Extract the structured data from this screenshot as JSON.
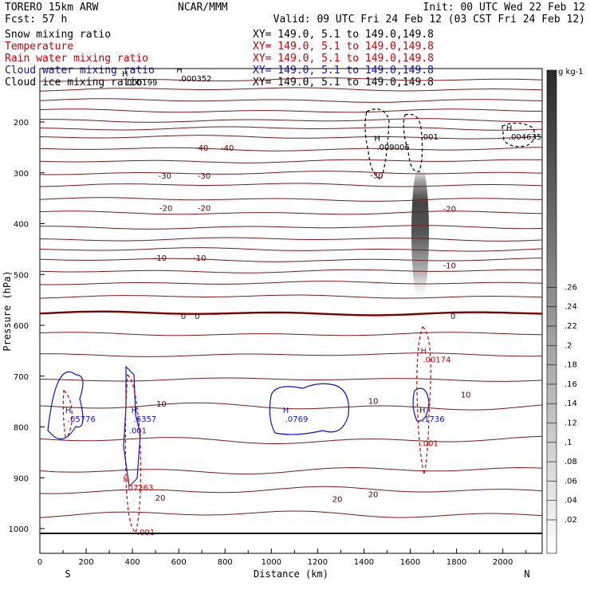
{
  "header": {
    "model": "TORERO  15km ARW",
    "center": "NCAR/MMM",
    "init": "Init: 00 UTC Wed 22 Feb 12",
    "fcst": "Fcst:   57 h",
    "valid": "Valid: 09 UTC Fri 24 Feb 12 (03 CST Fri 24 Feb 12)"
  },
  "legend": {
    "entries": [
      {
        "name": "Snow mixing ratio",
        "color": "#000000"
      },
      {
        "name": "Temperature",
        "color": "#cc0000"
      },
      {
        "name": "Rain water mixing ratio",
        "color": "#cc0000"
      },
      {
        "name": "Cloud water mixing ratio",
        "color": "#1010cc"
      },
      {
        "name": "Cloud ice mixing ratio",
        "color": "#000000"
      }
    ],
    "xy": "XY= 149.0,  5.1 to 149.0,149.8"
  },
  "colorbar": {
    "unit": "g kg-1",
    "ticks": [
      ".02",
      ".04",
      ".06",
      ".08",
      ".1",
      ".12",
      ".14",
      ".16",
      ".18",
      ".2",
      ".22",
      ".24",
      ".26"
    ]
  },
  "chart_data": {
    "type": "line",
    "title": "",
    "xlabel": "Distance (km)",
    "ylabel": "Pressure (hPa)",
    "xlim": [
      0,
      2170
    ],
    "ylim": [
      1050,
      100
    ],
    "xticks": [
      0,
      200,
      400,
      600,
      800,
      1000,
      1200,
      1400,
      1600,
      1800,
      2000
    ],
    "yticks": [
      200,
      300,
      400,
      500,
      600,
      700,
      800,
      900,
      1000
    ],
    "x_endpoints": {
      "left": "S",
      "right": "N"
    },
    "temperature_labels": [
      {
        "label": "-40",
        "x": 700,
        "p": 252
      },
      {
        "label": "-40",
        "x": 810,
        "p": 252
      },
      {
        "label": "-30",
        "x": 540,
        "p": 307
      },
      {
        "label": "-30",
        "x": 710,
        "p": 307
      },
      {
        "label": "-30",
        "x": 1455,
        "p": 306
      },
      {
        "label": "-20",
        "x": 545,
        "p": 370
      },
      {
        "label": "-20",
        "x": 710,
        "p": 370
      },
      {
        "label": "-20",
        "x": 1770,
        "p": 372
      },
      {
        "label": "-10",
        "x": 520,
        "p": 468
      },
      {
        "label": "-10",
        "x": 690,
        "p": 468
      },
      {
        "label": "-10",
        "x": 1770,
        "p": 483
      },
      {
        "label": "0",
        "x": 620,
        "p": 583
      },
      {
        "label": "0",
        "x": 680,
        "p": 583
      },
      {
        "label": "0",
        "x": 1785,
        "p": 583
      },
      {
        "label": "10",
        "x": 525,
        "p": 755
      },
      {
        "label": "10",
        "x": 1440,
        "p": 750
      },
      {
        "label": "10",
        "x": 1840,
        "p": 737
      },
      {
        "label": "20",
        "x": 520,
        "p": 940
      },
      {
        "label": "20",
        "x": 1285,
        "p": 943
      },
      {
        "label": "20",
        "x": 1440,
        "p": 933
      }
    ],
    "maxima_labels": [
      {
        "kind": "H",
        "value": ".000352",
        "x": 600,
        "p": 115,
        "color": "#000000"
      },
      {
        "kind": "H",
        "value": ".000199",
        "x": 365,
        "p": 123,
        "color": "#000000"
      },
      {
        "kind": "H",
        "value": ".009006",
        "x": 1455,
        "p": 250,
        "color": "#000000"
      },
      {
        "kind": "",
        "value": ".001",
        "x": 1645,
        "p": 230,
        "color": "#000000"
      },
      {
        "kind": "H",
        "value": ".004635",
        "x": 2025,
        "p": 230,
        "color": "#000000"
      },
      {
        "kind": "H",
        "value": ".00174",
        "x": 1655,
        "p": 668,
        "color": "#cc0000"
      },
      {
        "kind": "",
        "value": ".001",
        "x": 1645,
        "p": 833,
        "color": "#cc0000"
      },
      {
        "kind": "H",
        "value": ".07263",
        "x": 370,
        "p": 920,
        "color": "#cc0000"
      },
      {
        "kind": "",
        "value": ".001",
        "x": 420,
        "p": 1008,
        "color": "#cc0000"
      },
      {
        "kind": "H",
        "value": ".05776",
        "x": 120,
        "p": 785,
        "color": "#1010cc"
      },
      {
        "kind": "H",
        "value": ".6357",
        "x": 405,
        "p": 785,
        "color": "#1010cc"
      },
      {
        "kind": "H",
        "value": ".0769",
        "x": 1060,
        "p": 785,
        "color": "#1010cc"
      },
      {
        "kind": "H",
        "value": ".1736",
        "x": 1650,
        "p": 785,
        "color": "#1010cc"
      },
      {
        "kind": "",
        "value": ".001",
        "x": 385,
        "p": 808,
        "color": "#1010cc"
      }
    ]
  }
}
